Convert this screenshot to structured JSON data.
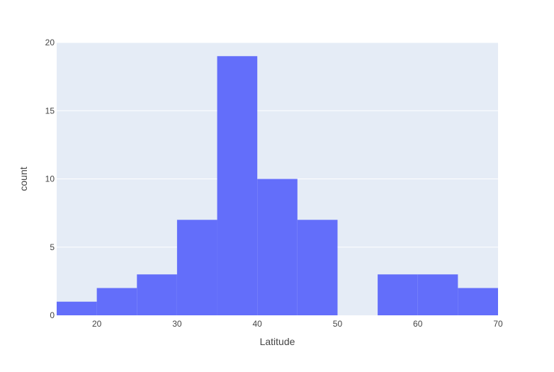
{
  "chart_data": {
    "type": "bar",
    "histogram": true,
    "bins": [
      {
        "x0": 15,
        "x1": 20,
        "count": 1
      },
      {
        "x0": 20,
        "x1": 25,
        "count": 2
      },
      {
        "x0": 25,
        "x1": 30,
        "count": 3
      },
      {
        "x0": 30,
        "x1": 35,
        "count": 7
      },
      {
        "x0": 35,
        "x1": 40,
        "count": 19
      },
      {
        "x0": 40,
        "x1": 45,
        "count": 10
      },
      {
        "x0": 45,
        "x1": 50,
        "count": 7
      },
      {
        "x0": 50,
        "x1": 55,
        "count": 0
      },
      {
        "x0": 55,
        "x1": 60,
        "count": 3
      },
      {
        "x0": 60,
        "x1": 65,
        "count": 3
      },
      {
        "x0": 65,
        "x1": 70,
        "count": 2
      }
    ],
    "xlabel": "Latitude",
    "ylabel": "count",
    "xlim": [
      15,
      70
    ],
    "ylim": [
      0,
      20
    ],
    "xticks": [
      20,
      30,
      40,
      50,
      60,
      70
    ],
    "yticks": [
      0,
      5,
      10,
      15,
      20
    ],
    "grid": true,
    "colors": {
      "bar": "#636efa",
      "plot_bg": "#e5ecf6",
      "grid": "#ffffff",
      "text": "#444444"
    }
  }
}
